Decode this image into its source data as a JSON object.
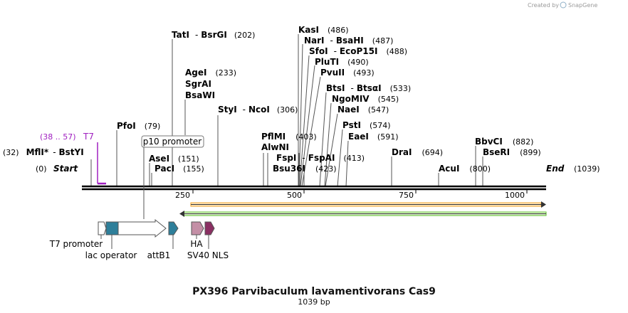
{
  "credit": "Created by",
  "brand": "SnapGene",
  "title": "PX396 Parvibaculum lavamentivorans Cas9",
  "length_label": "1039 bp",
  "ruler": {
    "start_label": "Start",
    "start_pos": "(0)",
    "end_label": "End",
    "end_pos": "(1039)",
    "ticks": [
      "250",
      "500",
      "750",
      "1000"
    ]
  },
  "enzymes": {
    "tati": {
      "name": "TatI",
      "sep": "-",
      "name2": "BsrGI",
      "pos": "(202)"
    },
    "agei": {
      "name": "AgeI",
      "pos": "(233)"
    },
    "sgrai": {
      "name": "SgrAI"
    },
    "bsawi": {
      "name": "BsaWI"
    },
    "styi": {
      "name": "StyI",
      "sep": "-",
      "name2": "NcoI",
      "pos": "(306)"
    },
    "kasi": {
      "name": "KasI",
      "pos": "(486)"
    },
    "nari": {
      "name": "NarI",
      "sep": "-",
      "name2": "BsaHI",
      "pos": "(487)"
    },
    "sfoi": {
      "name": "SfoI",
      "sep": "-",
      "name2": "EcoP15I",
      "pos": "(488)"
    },
    "pluti": {
      "name": "PluTI",
      "pos": "(490)"
    },
    "pvuii": {
      "name": "PvuII",
      "pos": "(493)"
    },
    "btsi": {
      "name": "BtsI",
      "sep": "-",
      "name2": "BtsαI",
      "pos": "(533)"
    },
    "ngomiv": {
      "name": "NgoMIV",
      "pos": "(545)"
    },
    "naei": {
      "name": "NaeI",
      "pos": "(547)"
    },
    "psti": {
      "name": "PstI",
      "pos": "(574)"
    },
    "eaei": {
      "name": "EaeI",
      "pos": "(591)"
    },
    "pfoi": {
      "name": "PfoI",
      "pos": "(79)"
    },
    "pflmi": {
      "name": "PflMI",
      "pos": "(403)"
    },
    "alwni": {
      "name": "AlwNI"
    },
    "fspi": {
      "name": "FspI",
      "sep": "-",
      "name2": "FspAI",
      "pos": "(413)"
    },
    "bsu36i": {
      "name": "Bsu36I",
      "pos": "(423)"
    },
    "asei": {
      "name": "AseI",
      "pos": "(151)"
    },
    "paci": {
      "name": "PacI",
      "pos": "(155)"
    },
    "mlfi": {
      "name": "MflI",
      "star": "*",
      "sep": "-",
      "name2": "BstYI",
      "pos": "(32)"
    },
    "drai": {
      "name": "DraI",
      "pos": "(694)"
    },
    "acui": {
      "name": "AcuI",
      "pos": "(800)"
    },
    "bbvci": {
      "name": "BbvCI",
      "pos": "(882)"
    },
    "bseri": {
      "name": "BseRI",
      "pos": "(899)"
    }
  },
  "primer": {
    "name": "T7",
    "pos": "(38 .. 57)"
  },
  "features": {
    "p10": "p10 promoter",
    "t7_promoter": "T7 promoter",
    "lac_operator": "lac operator",
    "attb1": "attB1",
    "ha": "HA",
    "sv40": "SV40 NLS"
  },
  "colors": {
    "orf_fwd": "#f4a427",
    "orf_fwd_fill": "#fde9c4",
    "orf_rev": "#5bbf2a",
    "orf_rev_fill": "#dff3cf",
    "lac": "#2e7f9a",
    "attb1": "#2e7f9a",
    "ha": "#c48fa6",
    "sv40": "#8a2f62",
    "primer": "#a020c0"
  }
}
